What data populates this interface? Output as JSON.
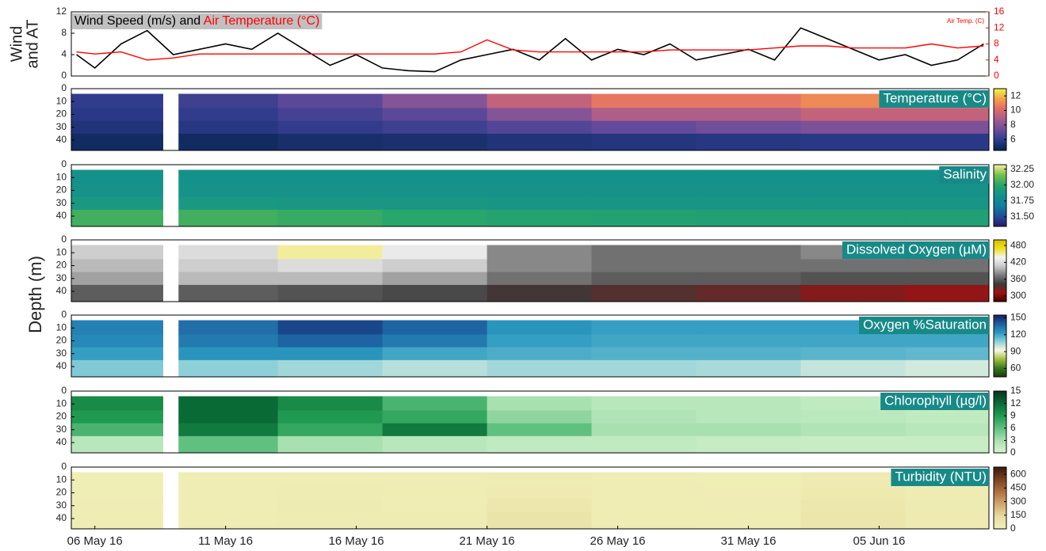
{
  "ylabel": "Depth (m)",
  "chart_data": [
    {
      "type": "line",
      "ylabel": [
        "Wind",
        "and AT"
      ],
      "title_joiner": "and",
      "y2label": "Air Temp. (C)",
      "x": [
        5.3,
        6,
        7,
        8,
        9,
        10,
        11,
        12,
        13,
        14,
        15,
        16,
        17,
        18,
        19,
        20,
        21,
        22,
        23,
        24,
        25,
        26,
        27,
        28,
        29,
        30,
        31,
        32,
        33,
        34,
        35,
        36,
        37,
        38,
        39,
        40
      ],
      "series": [
        {
          "name": "Wind Speed (m/s)",
          "color": "#000000",
          "values": [
            4,
            1.5,
            6,
            8.5,
            4,
            5,
            6,
            5,
            8,
            5,
            2,
            4,
            1.5,
            1,
            0.8,
            3,
            4,
            5,
            3,
            7,
            3,
            5,
            4,
            6,
            3,
            4,
            5,
            3,
            9,
            7,
            5,
            3,
            4,
            2,
            3,
            6
          ]
        },
        {
          "name": "Air Temperature (°C)",
          "color": "#ff0000",
          "axis": "y2",
          "values": [
            6,
            5.5,
            6,
            4,
            4.5,
            5.5,
            5.5,
            5.5,
            5.5,
            5.5,
            5.5,
            5.5,
            5.5,
            5.5,
            5.5,
            6,
            9,
            6.5,
            6,
            6,
            6,
            6,
            6,
            6.5,
            6.5,
            6.5,
            6.5,
            7,
            7.5,
            7.5,
            7,
            7,
            7,
            8,
            7,
            7.5
          ]
        }
      ],
      "xlim": [
        5.1,
        40.2
      ],
      "ylim": [
        0,
        12
      ],
      "yticks": [
        0,
        4,
        8,
        12
      ],
      "y2lim": [
        0,
        16
      ],
      "y2ticks": [
        0,
        4,
        8,
        12,
        16
      ]
    },
    {
      "type": "heatmap",
      "title": "Temperature (°C)",
      "x_edges": [
        5.1,
        8.6,
        9.2,
        13,
        17,
        21,
        25,
        29,
        33,
        37,
        40.2
      ],
      "depth_edges": [
        4,
        15,
        25,
        35,
        48
      ],
      "values": [
        [
          6.0,
          null,
          6.3,
          7.0,
          8.0,
          9.5,
          10.5,
          10.5,
          11.0,
          11.0
        ],
        [
          5.8,
          null,
          6.0,
          6.5,
          7.0,
          8.0,
          9.0,
          9.0,
          9.5,
          9.5
        ],
        [
          5.5,
          null,
          5.7,
          6.0,
          6.3,
          6.8,
          7.2,
          7.5,
          7.8,
          7.8
        ],
        [
          5.0,
          null,
          5.0,
          5.2,
          5.3,
          5.5,
          5.6,
          5.7,
          5.8,
          5.8
        ]
      ],
      "xlim": [
        5.1,
        40.2
      ],
      "ylim": [
        0,
        48
      ],
      "yticks": [
        0,
        10,
        20,
        30,
        40
      ],
      "invert_y": true,
      "clim": [
        4.5,
        13
      ],
      "cticks": [
        6,
        8,
        10,
        12
      ],
      "colormap": [
        "#04234a",
        "#2d3b8c",
        "#6a4c9c",
        "#a35c8f",
        "#e06a6a",
        "#f6a048",
        "#e8f84c"
      ]
    },
    {
      "type": "heatmap",
      "title": "Salinity",
      "x_edges": [
        5.1,
        8.6,
        9.2,
        13,
        17,
        21,
        25,
        29,
        33,
        37,
        40.2
      ],
      "depth_edges": [
        4,
        15,
        25,
        35,
        48
      ],
      "values": [
        [
          31.85,
          null,
          31.85,
          31.85,
          31.85,
          31.85,
          31.85,
          31.85,
          31.85,
          31.85
        ],
        [
          31.86,
          null,
          31.86,
          31.86,
          31.86,
          31.86,
          31.86,
          31.86,
          31.86,
          31.86
        ],
        [
          31.9,
          null,
          31.9,
          31.89,
          31.89,
          31.88,
          31.88,
          31.88,
          31.88,
          31.88
        ],
        [
          32.05,
          null,
          32.05,
          32.03,
          32.0,
          31.98,
          31.97,
          31.96,
          31.95,
          31.95
        ]
      ],
      "xlim": [
        5.1,
        40.2
      ],
      "ylim": [
        0,
        48
      ],
      "yticks": [
        0,
        10,
        20,
        30,
        40
      ],
      "invert_y": true,
      "clim": [
        31.35,
        32.32
      ],
      "cticks": [
        {
          "value": 31.5,
          "label": "31.50"
        },
        31.75,
        {
          "value": 32,
          "label": "32.00"
        },
        32.25
      ],
      "colormap": [
        "#2a186c",
        "#1d4f9a",
        "#0f7fa0",
        "#138f8f",
        "#27a56b",
        "#75c04a",
        "#fdef9a"
      ]
    },
    {
      "type": "heatmap",
      "title": "Dissolved Oxygen (µM)",
      "x_edges": [
        5.1,
        8.6,
        9.2,
        13,
        17,
        21,
        25,
        29,
        33,
        37,
        40.2
      ],
      "depth_edges": [
        4,
        15,
        25,
        35,
        48
      ],
      "values": [
        [
          410,
          null,
          420,
          450,
          430,
          380,
          370,
          370,
          380,
          370
        ],
        [
          400,
          null,
          410,
          420,
          410,
          380,
          370,
          370,
          370,
          370
        ],
        [
          390,
          null,
          400,
          400,
          390,
          370,
          360,
          360,
          355,
          355
        ],
        [
          360,
          null,
          360,
          355,
          350,
          340,
          335,
          330,
          320,
          315
        ]
      ],
      "xlim": [
        5.1,
        40.2
      ],
      "ylim": [
        0,
        48
      ],
      "yticks": [
        0,
        10,
        20,
        30,
        40
      ],
      "invert_y": true,
      "clim": [
        280,
        500
      ],
      "cticks": [
        300,
        360,
        420,
        480
      ],
      "colormap": [
        "#400505",
        "#a01010",
        "#3a3a3a",
        "#7a7a7a",
        "#c8c8c8",
        "#f4f4f4",
        "#f0e020",
        "#d8c000"
      ]
    },
    {
      "type": "heatmap",
      "title": "Oxygen %Saturation",
      "x_edges": [
        5.1,
        8.6,
        9.2,
        13,
        17,
        21,
        25,
        29,
        33,
        37,
        40.2
      ],
      "depth_edges": [
        4,
        15,
        25,
        35,
        48
      ],
      "values": [
        [
          130,
          null,
          135,
          145,
          138,
          125,
          122,
          122,
          122,
          122
        ],
        [
          128,
          null,
          132,
          138,
          132,
          122,
          120,
          120,
          120,
          120
        ],
        [
          122,
          null,
          125,
          125,
          120,
          118,
          117,
          117,
          116,
          115
        ],
        [
          110,
          null,
          108,
          105,
          102,
          105,
          105,
          104,
          100,
          98
        ]
      ],
      "xlim": [
        5.1,
        40.2
      ],
      "ylim": [
        0,
        48
      ],
      "yticks": [
        0,
        10,
        20,
        30,
        40
      ],
      "invert_y": true,
      "clim": [
        45,
        155
      ],
      "cticks": [
        60,
        90,
        120,
        150
      ],
      "colormap": [
        "#1c3a10",
        "#3a7a1c",
        "#a0c040",
        "#fbf8e0",
        "#8ed0d8",
        "#2a9ac0",
        "#1d5ea0",
        "#152060"
      ]
    },
    {
      "type": "heatmap",
      "title": "Chlorophyll (µg/l)",
      "x_edges": [
        5.1,
        8.6,
        9.2,
        13,
        17,
        21,
        25,
        29,
        33,
        37,
        40.2
      ],
      "depth_edges": [
        4,
        15,
        25,
        35,
        48
      ],
      "values": [
        [
          10,
          null,
          12,
          10,
          7,
          3,
          2,
          2,
          1.5,
          1.5
        ],
        [
          9,
          null,
          12,
          9,
          8,
          4,
          2.5,
          2,
          1.8,
          1.5
        ],
        [
          7,
          null,
          11,
          8,
          11,
          6,
          3,
          3,
          2.5,
          2
        ],
        [
          2,
          null,
          6,
          3,
          2,
          1.5,
          1.5,
          1.2,
          1,
          1
        ]
      ],
      "xlim": [
        5.1,
        40.2
      ],
      "ylim": [
        0,
        48
      ],
      "yticks": [
        0,
        10,
        20,
        30,
        40
      ],
      "invert_y": true,
      "clim": [
        0,
        15
      ],
      "cticks": [
        0,
        3,
        6,
        9,
        12,
        15
      ],
      "colormap": [
        "#d8f4d0",
        "#a8e0b0",
        "#60c080",
        "#209a50",
        "#0a6a35",
        "#08331c"
      ]
    },
    {
      "type": "heatmap",
      "title": "Turbidity (NTU)",
      "x_edges": [
        5.1,
        8.6,
        9.2,
        13,
        17,
        21,
        25,
        29,
        33,
        37,
        40.2
      ],
      "depth_edges": [
        4,
        15,
        25,
        35,
        48
      ],
      "values": [
        [
          15,
          null,
          20,
          25,
          18,
          30,
          20,
          15,
          40,
          25
        ],
        [
          15,
          null,
          20,
          30,
          20,
          40,
          22,
          18,
          50,
          30
        ],
        [
          18,
          null,
          22,
          35,
          25,
          60,
          25,
          20,
          60,
          35
        ],
        [
          20,
          null,
          25,
          30,
          30,
          80,
          25,
          20,
          70,
          40
        ]
      ],
      "xlim": [
        5.1,
        40.2
      ],
      "ylim": [
        0,
        48
      ],
      "yticks": [
        0,
        10,
        20,
        30,
        40
      ],
      "invert_y": true,
      "xticks": [
        {
          "value": 6,
          "label": "06 May 16"
        },
        {
          "value": 11,
          "label": "11 May 16"
        },
        {
          "value": 16,
          "label": "16 May 16"
        },
        {
          "value": 21,
          "label": "21 May 16"
        },
        {
          "value": 26,
          "label": "26 May 16"
        },
        {
          "value": 31,
          "label": "31 May 16"
        },
        {
          "value": 36,
          "label": "05 Jun 16"
        }
      ],
      "clim": [
        0,
        680
      ],
      "cticks": [
        0,
        150,
        300,
        450,
        600
      ],
      "colormap": [
        "#f0f0b8",
        "#e8dca0",
        "#d0a870",
        "#b07040",
        "#7a4020",
        "#3a1a08"
      ]
    }
  ]
}
